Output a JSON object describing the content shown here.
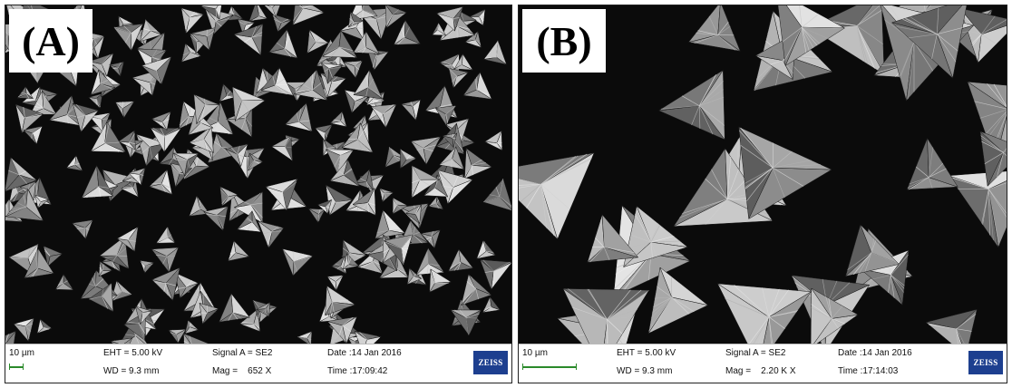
{
  "panels": [
    {
      "label": "(A)",
      "scale": "10 µm",
      "eht": "EHT = 5.00 kV",
      "wd": "WD = 9.3 mm",
      "signal": "Signal A = SE2",
      "mag": "Mag =    652 X",
      "date": "Date :14 Jan 2016",
      "time": "Time :17:09:42",
      "logo": "ZEISS"
    },
    {
      "label": "(B)",
      "scale": "10 µm",
      "eht": "EHT = 5.00 kV",
      "wd": "WD = 9.3 mm",
      "signal": "Signal A = SE2",
      "mag": "Mag =    2.20 K X",
      "date": "Date :14 Jan 2016",
      "time": "Time :17:14:03",
      "logo": "ZEISS"
    }
  ]
}
